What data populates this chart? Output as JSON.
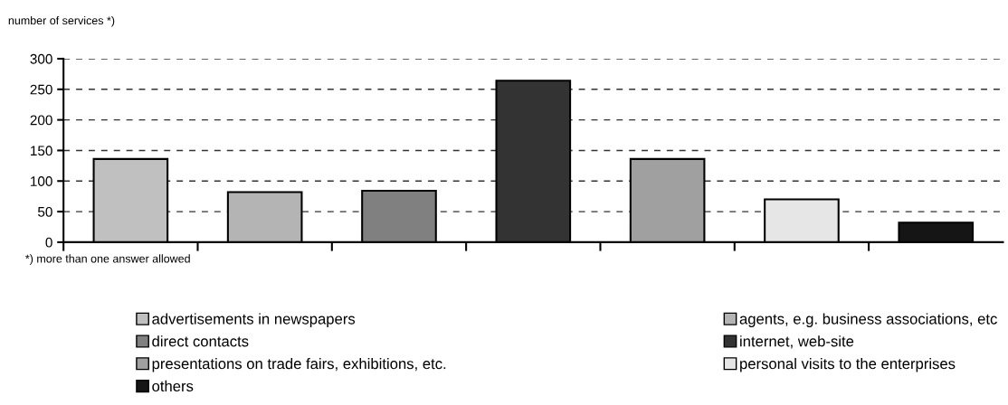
{
  "chart_data": {
    "type": "bar",
    "ylabel": "number of services *)",
    "categories": [
      null,
      null,
      null,
      null,
      null,
      null,
      null
    ],
    "series": [
      {
        "name": "advertisements in newspapers",
        "color": "#c0c0c0",
        "values": [
          136,
          null,
          null,
          null,
          null,
          null,
          null
        ]
      },
      {
        "name": "agents, e.g. business associations, etc",
        "color": "#b4b4b4",
        "values": [
          null,
          82,
          null,
          null,
          null,
          null,
          null
        ]
      },
      {
        "name": "direct contacts",
        "color": "#808080",
        "values": [
          null,
          null,
          84,
          null,
          null,
          null,
          null
        ]
      },
      {
        "name": "internet, web-site",
        "color": "#333333",
        "values": [
          null,
          null,
          null,
          264,
          null,
          null,
          null
        ]
      },
      {
        "name": "presentations on trade fairs, exhibitions, etc.",
        "color": "#a0a0a0",
        "values": [
          null,
          null,
          null,
          null,
          136,
          null,
          null
        ]
      },
      {
        "name": "personal visits to the enterprises",
        "color": "#e6e6e6",
        "values": [
          null,
          null,
          null,
          null,
          null,
          70,
          null
        ]
      },
      {
        "name": "others",
        "color": "#151515",
        "values": [
          null,
          null,
          null,
          null,
          null,
          null,
          32
        ]
      }
    ],
    "ylim": [
      0,
      300
    ],
    "yticks": [
      0,
      50,
      100,
      150,
      200,
      250,
      300
    ],
    "grid": "y",
    "legend": "bottom",
    "tick_labels": "y",
    "annotations": [
      "*) more than one answer allowed"
    ]
  }
}
